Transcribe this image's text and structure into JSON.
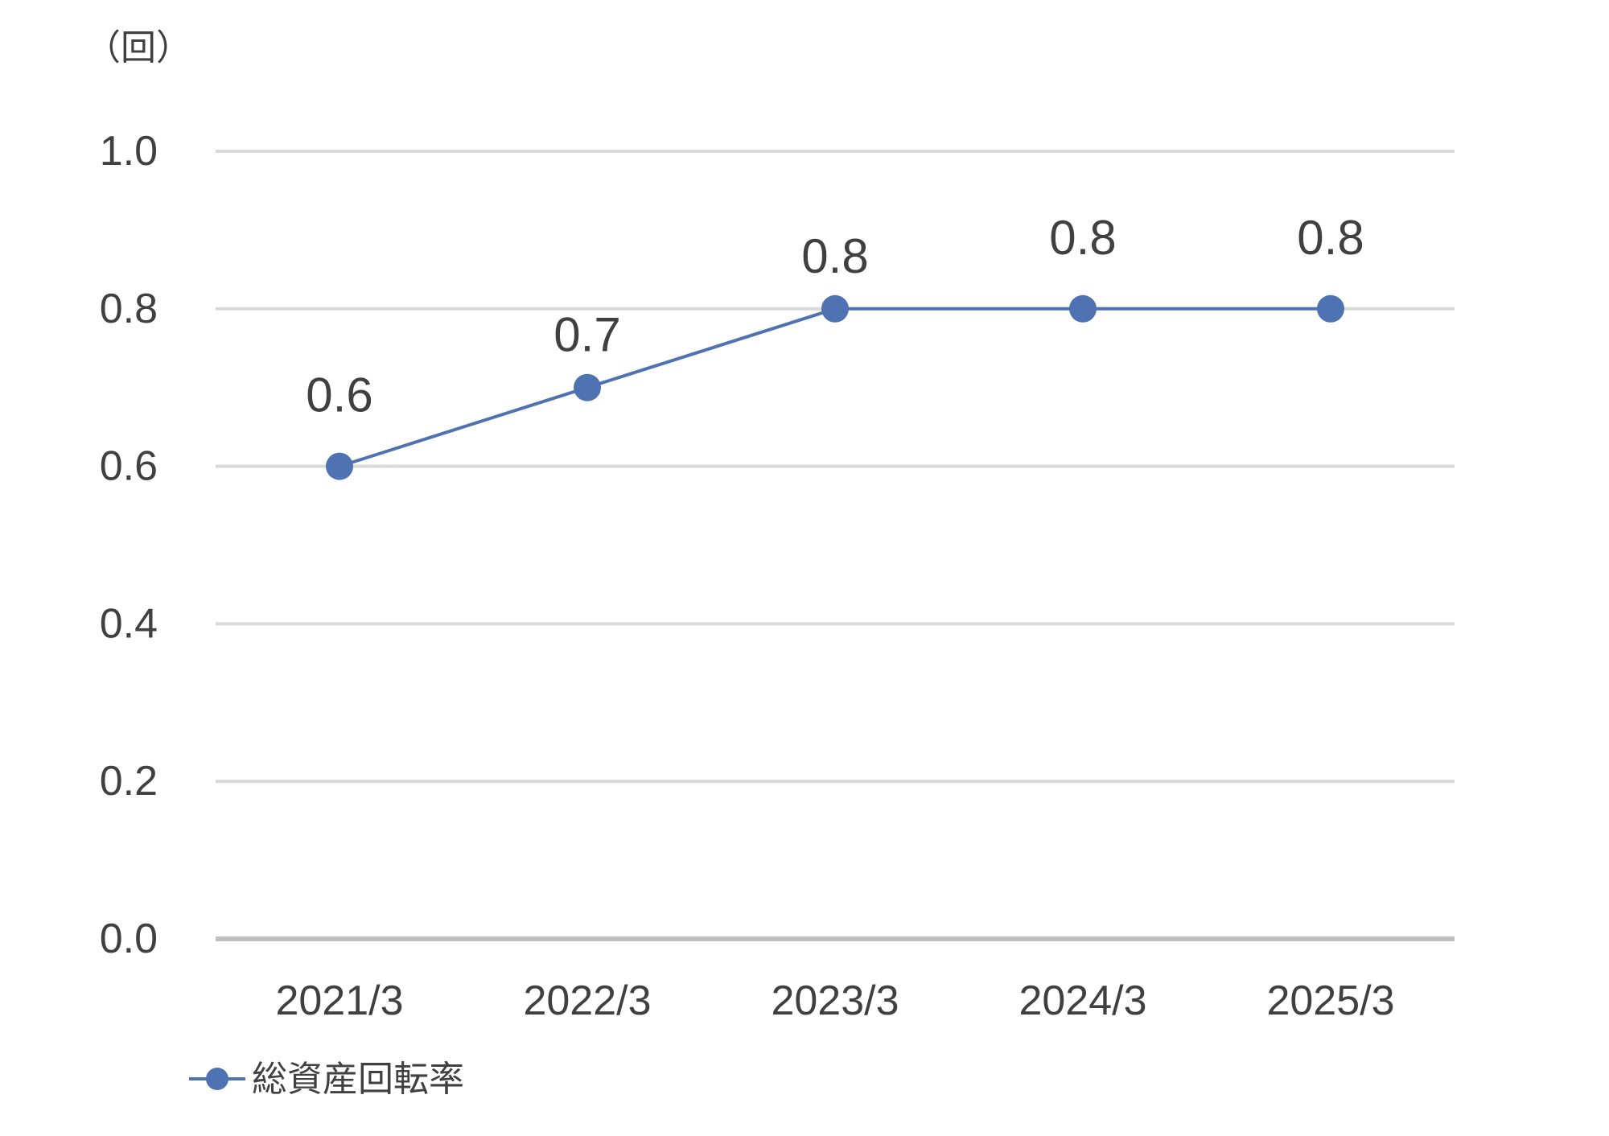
{
  "chart_data": {
    "type": "line",
    "unit_label": "（回）",
    "categories": [
      "2021/3",
      "2022/3",
      "2023/3",
      "2024/3",
      "2025/3"
    ],
    "series": [
      {
        "name": "総資産回転率",
        "values": [
          0.6,
          0.7,
          0.8,
          0.8,
          0.8
        ],
        "data_labels": [
          "0.6",
          "0.7",
          "0.8",
          "0.8",
          "0.8"
        ],
        "color": "#4f72b3"
      }
    ],
    "ylim": [
      0,
      1.0
    ],
    "yticks": [
      "0.0",
      "0.2",
      "0.4",
      "0.6",
      "0.8",
      "1.0"
    ],
    "grid": true,
    "legend": "bottom-left"
  },
  "colors": {
    "series": "#4f72b3",
    "grid": "#d9d9d9",
    "axis": "#bfbfbf",
    "text": "#404040"
  }
}
